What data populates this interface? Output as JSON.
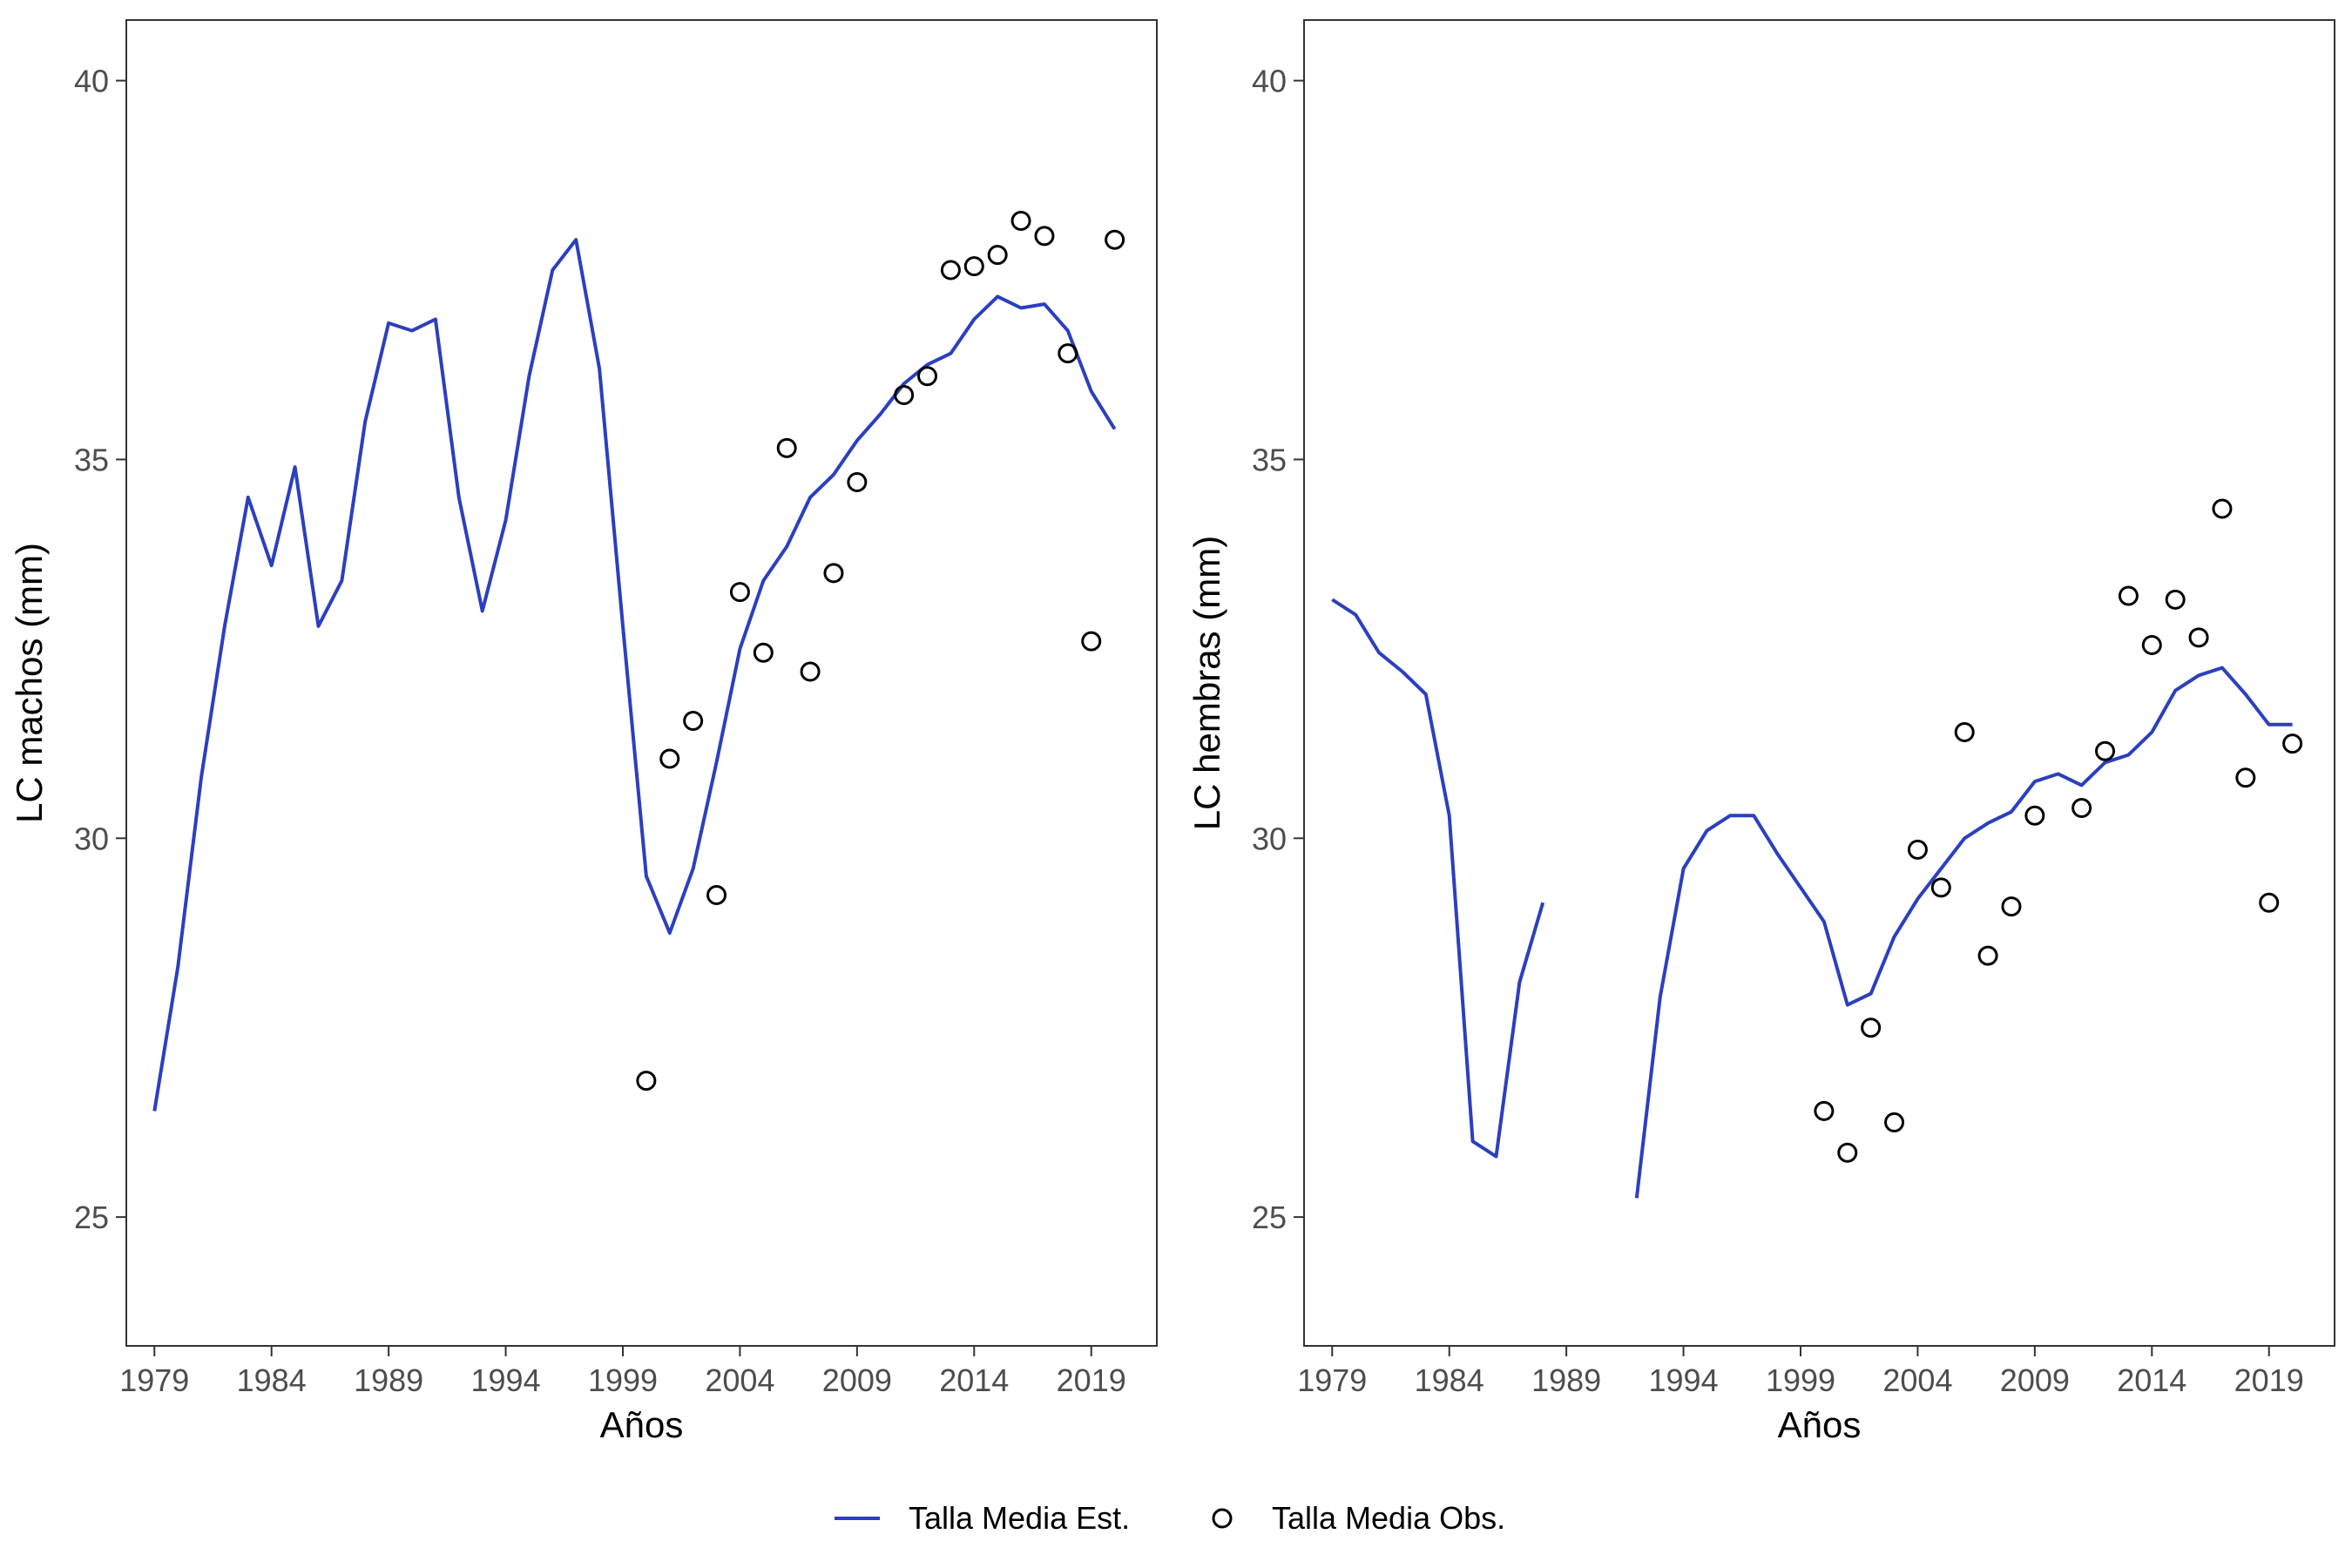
{
  "colors": {
    "line": "#2b3fbf",
    "point_stroke": "#000000",
    "panel_border": "#333333"
  },
  "legend": {
    "placement": "bottom",
    "items": [
      {
        "label": "Talla Media Est.",
        "type": "line"
      },
      {
        "label": "Talla Media Obs.",
        "type": "point"
      }
    ]
  },
  "chart_data": [
    {
      "type": "line",
      "title": "",
      "xlabel": "Años",
      "ylabel": "LC machos (mm)",
      "xlim": [
        1977.8,
        2021.8
      ],
      "ylim": [
        23.3,
        40.8
      ],
      "xticks": [
        1979,
        1984,
        1989,
        1994,
        1999,
        2004,
        2009,
        2014,
        2019
      ],
      "yticks": [
        25,
        30,
        35,
        40
      ],
      "grid": false,
      "series": [
        {
          "name": "Talla Media Est.",
          "type": "line",
          "x": [
            1979,
            1980,
            1981,
            1982,
            1983,
            1984,
            1985,
            1986,
            1987,
            1988,
            1989,
            1990,
            1991,
            1992,
            1993,
            1994,
            1995,
            1996,
            1997,
            1998,
            1999,
            2000,
            2001,
            2002,
            2003,
            2004,
            2005,
            2006,
            2007,
            2008,
            2009,
            2010,
            2011,
            2012,
            2013,
            2014,
            2015,
            2016,
            2017,
            2018,
            2019,
            2020
          ],
          "y": [
            26.4,
            28.3,
            30.8,
            32.8,
            34.5,
            33.6,
            34.9,
            32.8,
            33.4,
            35.5,
            36.8,
            36.7,
            36.85,
            34.5,
            33.0,
            34.2,
            36.1,
            37.5,
            37.9,
            36.2,
            32.8,
            29.5,
            28.75,
            29.6,
            31.0,
            32.5,
            33.4,
            33.85,
            34.5,
            34.8,
            35.25,
            35.6,
            36.0,
            36.25,
            36.4,
            36.85,
            37.15,
            37.0,
            37.05,
            36.7,
            35.9,
            35.4
          ]
        },
        {
          "name": "Talla Media Obs.",
          "type": "scatter",
          "x": [
            2000,
            2001,
            2002,
            2003,
            2004,
            2005,
            2006,
            2007,
            2008,
            2009,
            2011,
            2012,
            2013,
            2014,
            2015,
            2016,
            2017,
            2018,
            2019,
            2020
          ],
          "y": [
            26.8,
            31.05,
            31.55,
            29.25,
            33.25,
            32.45,
            35.15,
            32.2,
            33.5,
            34.7,
            35.85,
            36.1,
            37.5,
            37.55,
            37.7,
            38.15,
            37.95,
            36.4,
            32.6,
            37.9
          ]
        }
      ]
    },
    {
      "type": "line",
      "title": "",
      "xlabel": "Años",
      "ylabel": "LC hembras (mm)",
      "xlim": [
        1977.8,
        2021.8
      ],
      "ylim": [
        23.3,
        40.8
      ],
      "xticks": [
        1979,
        1984,
        1989,
        1994,
        1999,
        2004,
        2009,
        2014,
        2019
      ],
      "yticks": [
        25,
        30,
        35,
        40
      ],
      "grid": false,
      "series": [
        {
          "name": "Talla Media Est.",
          "type": "line",
          "x": [
            1979,
            1980,
            1981,
            1982,
            1983,
            1984,
            1985,
            1986,
            1987,
            1988,
            1989,
            1990,
            1991,
            1992,
            1993,
            1994,
            1995,
            1996,
            1997,
            1998,
            1999,
            2000,
            2001,
            2002,
            2003,
            2004,
            2005,
            2006,
            2007,
            2008,
            2009,
            2010,
            2011,
            2012,
            2013,
            2014,
            2015,
            2016,
            2017,
            2018,
            2019,
            2020
          ],
          "y": [
            33.15,
            32.95,
            32.45,
            32.2,
            31.9,
            30.3,
            26.0,
            25.8,
            28.1,
            29.15,
            null,
            null,
            null,
            25.25,
            27.9,
            29.6,
            30.1,
            30.3,
            30.3,
            29.8,
            29.35,
            28.9,
            27.8,
            27.95,
            28.7,
            29.2,
            29.6,
            30.0,
            30.2,
            30.35,
            30.75,
            30.85,
            30.7,
            31.0,
            31.1,
            31.4,
            31.95,
            32.15,
            32.25,
            31.9,
            31.5,
            31.5
          ]
        },
        {
          "name": "Talla Media Obs.",
          "type": "scatter",
          "x": [
            2000,
            2001,
            2002,
            2003,
            2004,
            2005,
            2006,
            2007,
            2008,
            2009,
            2011,
            2012,
            2013,
            2014,
            2015,
            2016,
            2017,
            2018,
            2019,
            2020
          ],
          "y": [
            26.4,
            25.85,
            27.5,
            26.25,
            29.85,
            29.35,
            31.4,
            28.45,
            29.1,
            30.3,
            30.4,
            31.15,
            33.2,
            32.55,
            33.15,
            32.65,
            34.35,
            30.8,
            29.15,
            31.25
          ]
        }
      ]
    }
  ]
}
